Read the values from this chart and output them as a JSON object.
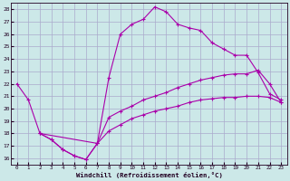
{
  "xlabel": "Windchill (Refroidissement éolien,°C)",
  "bg_color": "#cce8e8",
  "grid_color": "#aaaacc",
  "line_color": "#aa00aa",
  "xlim": [
    -0.5,
    23.5
  ],
  "ylim": [
    15.5,
    28.5
  ],
  "xticks": [
    0,
    1,
    2,
    3,
    4,
    5,
    6,
    7,
    8,
    9,
    10,
    11,
    12,
    13,
    14,
    15,
    16,
    17,
    18,
    19,
    20,
    21,
    22,
    23
  ],
  "yticks": [
    16,
    17,
    18,
    19,
    20,
    21,
    22,
    23,
    24,
    25,
    26,
    27,
    28
  ],
  "line1_x": [
    0,
    1,
    2,
    3,
    4,
    5,
    6,
    7,
    8,
    9,
    10,
    11,
    12,
    13,
    14,
    15,
    16,
    17,
    18,
    19,
    20,
    21,
    22,
    23
  ],
  "line1_y": [
    22.0,
    20.7,
    18.0,
    17.5,
    16.7,
    16.2,
    15.9,
    17.2,
    22.5,
    26.0,
    26.8,
    27.2,
    28.2,
    27.8,
    26.8,
    26.5,
    26.3,
    25.3,
    24.8,
    24.3,
    24.3,
    22.9,
    21.2,
    20.7
  ],
  "line2_x": [
    2,
    3,
    4,
    5,
    6,
    7,
    8,
    9,
    10,
    11,
    12,
    13,
    14,
    15,
    16,
    17,
    18,
    19,
    20,
    21,
    22,
    23
  ],
  "line2_y": [
    18.0,
    17.5,
    16.7,
    16.2,
    15.9,
    17.2,
    18.2,
    18.7,
    19.2,
    19.5,
    19.8,
    20.0,
    20.2,
    20.5,
    20.7,
    20.8,
    20.9,
    20.9,
    21.0,
    21.0,
    20.9,
    20.5
  ],
  "line3_x": [
    2,
    7,
    8,
    9,
    10,
    11,
    12,
    13,
    14,
    15,
    16,
    17,
    18,
    19,
    20,
    21,
    22,
    23
  ],
  "line3_y": [
    18.0,
    17.2,
    19.3,
    19.8,
    20.2,
    20.7,
    21.0,
    21.3,
    21.7,
    22.0,
    22.3,
    22.5,
    22.7,
    22.8,
    22.8,
    23.1,
    22.0,
    20.5
  ]
}
